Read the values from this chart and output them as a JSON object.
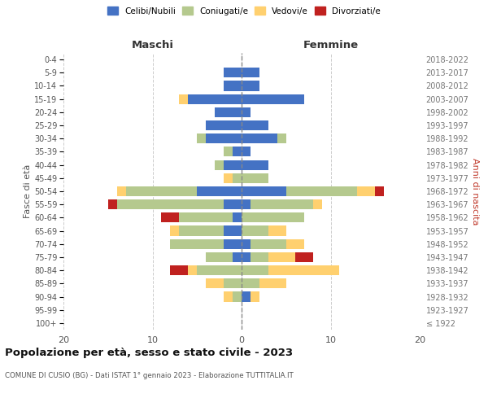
{
  "age_groups": [
    "100+",
    "95-99",
    "90-94",
    "85-89",
    "80-84",
    "75-79",
    "70-74",
    "65-69",
    "60-64",
    "55-59",
    "50-54",
    "45-49",
    "40-44",
    "35-39",
    "30-34",
    "25-29",
    "20-24",
    "15-19",
    "10-14",
    "5-9",
    "0-4"
  ],
  "birth_years": [
    "≤ 1922",
    "1923-1927",
    "1928-1932",
    "1933-1937",
    "1938-1942",
    "1943-1947",
    "1948-1952",
    "1953-1957",
    "1958-1962",
    "1963-1967",
    "1968-1972",
    "1973-1977",
    "1978-1982",
    "1983-1987",
    "1988-1992",
    "1993-1997",
    "1998-2002",
    "2003-2007",
    "2008-2012",
    "2013-2017",
    "2018-2022"
  ],
  "maschi": {
    "celibi": [
      0,
      0,
      0,
      0,
      0,
      1,
      2,
      2,
      1,
      2,
      5,
      0,
      2,
      1,
      4,
      4,
      3,
      6,
      2,
      2,
      0
    ],
    "coniugati": [
      0,
      0,
      1,
      2,
      5,
      3,
      6,
      5,
      6,
      12,
      8,
      1,
      1,
      1,
      1,
      0,
      0,
      0,
      0,
      0,
      0
    ],
    "vedovi": [
      0,
      0,
      1,
      2,
      1,
      0,
      0,
      1,
      0,
      0,
      1,
      1,
      0,
      0,
      0,
      0,
      0,
      1,
      0,
      0,
      0
    ],
    "divorziati": [
      0,
      0,
      0,
      0,
      2,
      0,
      0,
      0,
      2,
      1,
      0,
      0,
      0,
      0,
      0,
      0,
      0,
      0,
      0,
      0,
      0
    ]
  },
  "femmine": {
    "nubili": [
      0,
      0,
      1,
      0,
      0,
      1,
      1,
      0,
      0,
      1,
      5,
      0,
      3,
      1,
      4,
      3,
      1,
      7,
      2,
      2,
      0
    ],
    "coniugate": [
      0,
      0,
      0,
      2,
      3,
      2,
      4,
      3,
      7,
      7,
      8,
      3,
      0,
      0,
      1,
      0,
      0,
      0,
      0,
      0,
      0
    ],
    "vedove": [
      0,
      0,
      1,
      3,
      8,
      3,
      2,
      2,
      0,
      1,
      2,
      0,
      0,
      0,
      0,
      0,
      0,
      0,
      0,
      0,
      0
    ],
    "divorziate": [
      0,
      0,
      0,
      0,
      0,
      2,
      0,
      0,
      0,
      0,
      1,
      0,
      0,
      0,
      0,
      0,
      0,
      0,
      0,
      0,
      0
    ]
  },
  "colors": {
    "celibi_nubili": "#4472C4",
    "coniugati": "#B5C98E",
    "vedovi": "#FFD06F",
    "divorziati": "#C0211F"
  },
  "xlim": 20,
  "title": "Popolazione per età, sesso e stato civile - 2023",
  "subtitle": "COMUNE DI CUSIO (BG) - Dati ISTAT 1° gennaio 2023 - Elaborazione TUTTITALIA.IT",
  "ylabel_left": "Fasce di età",
  "ylabel_right": "Anni di nascita",
  "xlabel_left": "Maschi",
  "xlabel_right": "Femmine",
  "bg_color": "#ffffff",
  "grid_color": "#cccccc"
}
